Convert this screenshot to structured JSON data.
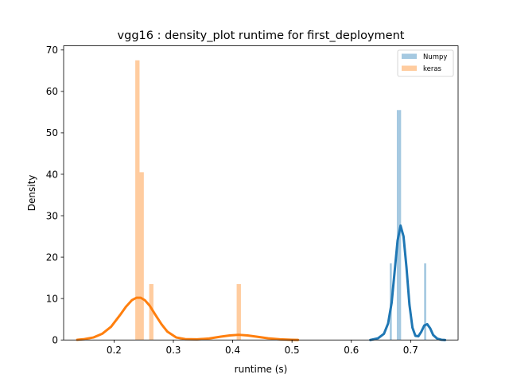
{
  "chart_data": {
    "type": "bar",
    "title": "vgg16 : density_plot runtime  for first_deployment",
    "xlabel": "runtime (s)",
    "ylabel": "Density",
    "xlim": [
      0.115,
      0.78
    ],
    "ylim": [
      0,
      71
    ],
    "xticks": [
      0.2,
      0.3,
      0.4,
      0.5,
      0.6,
      0.7
    ],
    "xtick_labels": [
      "0.2",
      "0.3",
      "0.4",
      "0.5",
      "0.6",
      "0.7"
    ],
    "yticks": [
      0,
      10,
      20,
      30,
      40,
      50,
      60,
      70
    ],
    "ytick_labels": [
      "0",
      "10",
      "20",
      "30",
      "40",
      "50",
      "60",
      "70"
    ],
    "legend_position": "top-right",
    "grid": false,
    "series": [
      {
        "name": "Numpy",
        "color": "#1f77b4",
        "hist_bin_width": 0.0036,
        "hist": [
          {
            "x": 0.6665,
            "density": 18.5
          },
          {
            "x": 0.6785,
            "density": 55.5
          },
          {
            "x": 0.6821,
            "density": 55.5
          },
          {
            "x": 0.7245,
            "density": 18.5
          }
        ],
        "kde_x": [
          0.632,
          0.645,
          0.655,
          0.662,
          0.668,
          0.673,
          0.678,
          0.683,
          0.688,
          0.693,
          0.698,
          0.703,
          0.708,
          0.713,
          0.718,
          0.723,
          0.728,
          0.733,
          0.738,
          0.745,
          0.752,
          0.758
        ],
        "kde_y": [
          0,
          0.4,
          1.5,
          4.0,
          9.0,
          16.5,
          24.0,
          27.6,
          25.0,
          17.5,
          8.5,
          3.0,
          1.0,
          0.9,
          2.0,
          3.5,
          3.8,
          2.8,
          1.2,
          0.3,
          0.05,
          0
        ]
      },
      {
        "name": "keras",
        "color": "#ff7f0e",
        "hist_bin_width": 0.0072,
        "hist": [
          {
            "x": 0.2394,
            "density": 67.5
          },
          {
            "x": 0.2466,
            "density": 40.5
          },
          {
            "x": 0.2628,
            "density": 13.5
          },
          {
            "x": 0.4103,
            "density": 13.5
          }
        ],
        "kde_x": [
          0.138,
          0.15,
          0.165,
          0.18,
          0.195,
          0.21,
          0.22,
          0.23,
          0.238,
          0.245,
          0.252,
          0.26,
          0.27,
          0.28,
          0.29,
          0.305,
          0.32,
          0.34,
          0.36,
          0.38,
          0.395,
          0.41,
          0.425,
          0.44,
          0.46,
          0.48,
          0.5,
          0.51
        ],
        "kde_y": [
          0.05,
          0.2,
          0.6,
          1.5,
          3.2,
          6.0,
          8.0,
          9.6,
          10.2,
          10.2,
          9.6,
          8.3,
          6.0,
          3.8,
          2.0,
          0.6,
          0.2,
          0.15,
          0.35,
          0.8,
          1.1,
          1.25,
          1.1,
          0.8,
          0.4,
          0.15,
          0.05,
          0.02
        ]
      }
    ]
  }
}
